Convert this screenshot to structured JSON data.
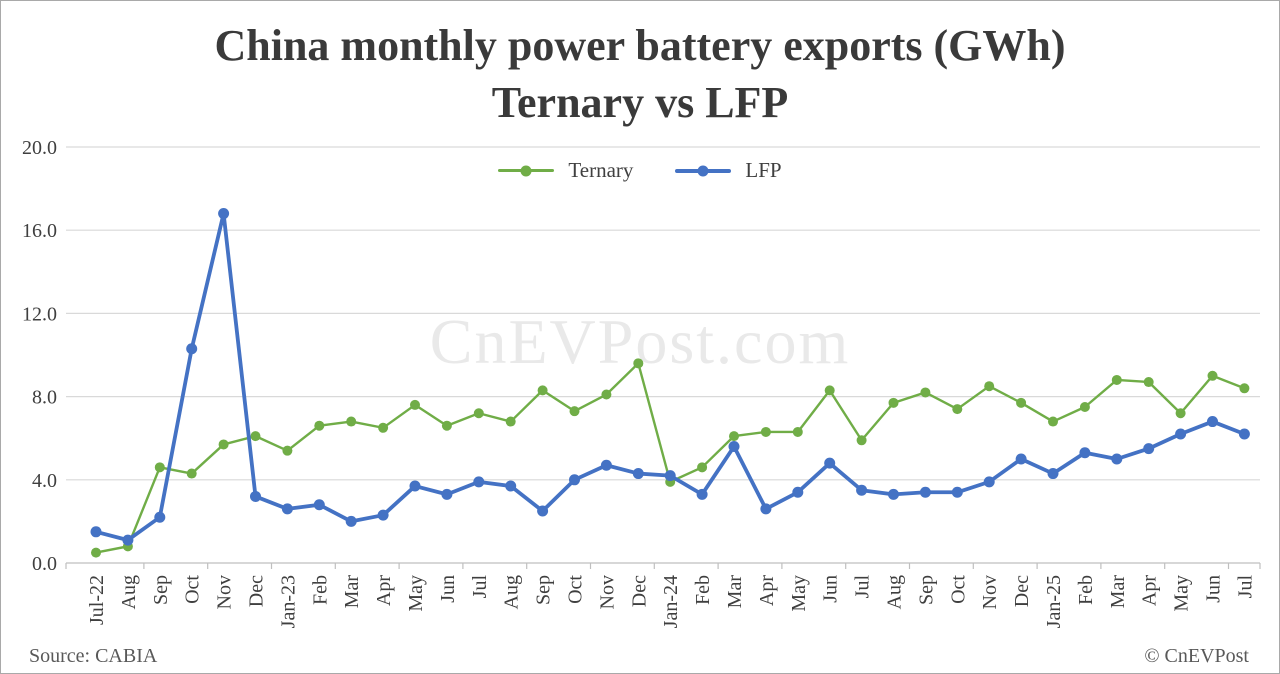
{
  "header": {
    "title_line1": "China monthly power battery exports (GWh)",
    "title_line2": "Ternary vs LFP"
  },
  "watermark": "CnEVPost.com",
  "footer": {
    "source": "Source: CABIA",
    "copyright": "© CnEVPost"
  },
  "chart_data": {
    "type": "line",
    "title": "China monthly power battery exports (GWh) Ternary vs LFP",
    "title_lines": [
      "China monthly power battery exports (GWh)",
      "Ternary vs LFP"
    ],
    "xlabel": "",
    "ylabel": "",
    "ylim": [
      0,
      20
    ],
    "grid": true,
    "legend_position": "top-center",
    "y_tick_labels": [
      "0.0",
      "4.0",
      "8.0",
      "12.0",
      "16.0",
      "20.0"
    ],
    "y_tick_values": [
      0,
      4,
      8,
      12,
      16,
      20
    ],
    "gridline_values": [
      4,
      8,
      12,
      16,
      20
    ],
    "categories": [
      "Jul-22",
      "Aug",
      "Sep",
      "Oct",
      "Nov",
      "Dec",
      "Jan-23",
      "Feb",
      "Mar",
      "Apr",
      "May",
      "Jun",
      "Jul",
      "Aug",
      "Sep",
      "Oct",
      "Nov",
      "Dec",
      "Jan-24",
      "Feb",
      "Mar",
      "Apr",
      "May",
      "Jun",
      "Jul",
      "Aug",
      "Sep",
      "Oct",
      "Nov",
      "Dec",
      "Jan-25",
      "Feb",
      "Mar",
      "Apr",
      "May",
      "Jun",
      "Jul"
    ],
    "series": [
      {
        "key": "ternary",
        "name": "Ternary",
        "color": "#70AD47",
        "values": [
          0.5,
          0.8,
          4.6,
          4.3,
          5.7,
          6.1,
          5.4,
          6.6,
          6.8,
          6.5,
          7.6,
          6.6,
          7.2,
          6.8,
          8.3,
          7.3,
          8.1,
          9.6,
          3.9,
          4.6,
          6.1,
          6.3,
          6.3,
          8.3,
          5.9,
          7.7,
          8.2,
          7.4,
          8.5,
          7.7,
          6.8,
          7.5,
          8.8,
          8.7,
          7.2,
          9.0,
          8.4
        ]
      },
      {
        "key": "lfp",
        "name": "LFP",
        "color": "#4472C4",
        "values": [
          1.5,
          1.1,
          2.2,
          10.3,
          16.8,
          3.2,
          2.6,
          2.8,
          2.0,
          2.3,
          3.7,
          3.3,
          3.9,
          3.7,
          2.5,
          4.0,
          4.7,
          4.3,
          4.2,
          3.3,
          5.6,
          2.6,
          3.4,
          4.8,
          3.5,
          3.3,
          3.4,
          3.4,
          3.9,
          5.0,
          4.3,
          5.3,
          5.0,
          5.5,
          6.2,
          6.8,
          6.2
        ]
      }
    ],
    "colors": {
      "gridline": "#D9D9D9",
      "axis_line": "#BFBFBF",
      "tick_text": "#3f3f3f"
    }
  }
}
